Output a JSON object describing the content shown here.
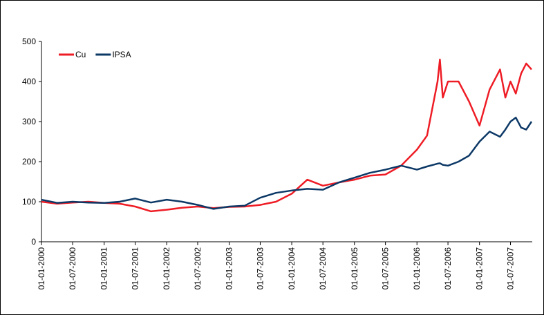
{
  "chart_data": {
    "type": "line",
    "x": [
      "01-01-2000",
      "01-04-2000",
      "01-07-2000",
      "01-10-2000",
      "01-01-2001",
      "01-04-2001",
      "01-07-2001",
      "01-10-2001",
      "01-01-2002",
      "01-04-2002",
      "01-07-2002",
      "01-10-2002",
      "01-01-2003",
      "01-04-2003",
      "01-07-2003",
      "01-10-2003",
      "01-01-2004",
      "01-04-2004",
      "01-07-2004",
      "01-10-2004",
      "01-01-2005",
      "01-04-2005",
      "01-07-2005",
      "01-10-2005",
      "01-01-2006",
      "01-03-2006",
      "01-05-2006",
      "15-05-2006",
      "01-06-2006",
      "01-07-2006",
      "01-09-2006",
      "01-11-2006",
      "01-01-2007",
      "01-03-2007",
      "01-05-2007",
      "01-06-2007",
      "01-07-2007",
      "01-08-2007",
      "01-09-2007",
      "01-10-2007",
      "01-11-2007"
    ],
    "series": [
      {
        "name": "Cu",
        "color": "#ee1c25",
        "values": [
          100,
          95,
          98,
          100,
          97,
          95,
          88,
          76,
          80,
          85,
          88,
          84,
          87,
          88,
          92,
          100,
          120,
          155,
          140,
          148,
          155,
          165,
          168,
          190,
          230,
          265,
          400,
          455,
          360,
          400,
          400,
          350,
          290,
          380,
          430,
          360,
          400,
          370,
          420,
          445,
          430
        ]
      },
      {
        "name": "IPSA",
        "color": "#0c3866",
        "values": [
          105,
          97,
          100,
          98,
          97,
          100,
          108,
          98,
          105,
          100,
          92,
          82,
          88,
          90,
          110,
          122,
          128,
          132,
          130,
          148,
          160,
          172,
          180,
          190,
          180,
          188,
          195,
          196,
          192,
          190,
          200,
          215,
          250,
          275,
          262,
          280,
          300,
          310,
          285,
          280,
          300
        ]
      }
    ],
    "xlim": [
      "01-01-2000",
      "05-11-2007"
    ],
    "xticks": [
      "01-01-2000",
      "01-07-2000",
      "01-01-2001",
      "01-07-2001",
      "01-01-2002",
      "01-07-2002",
      "01-01-2003",
      "01-07-2003",
      "01-01-2004",
      "01-07-2004",
      "01-01-2005",
      "01-07-2005",
      "01-01-2006",
      "01-07-2006",
      "01-01-2007",
      "01-07-2007"
    ],
    "ylim": [
      0,
      500
    ],
    "yticks": [
      0,
      100,
      200,
      300,
      400,
      500
    ],
    "grid": false,
    "legend": "top-left"
  }
}
